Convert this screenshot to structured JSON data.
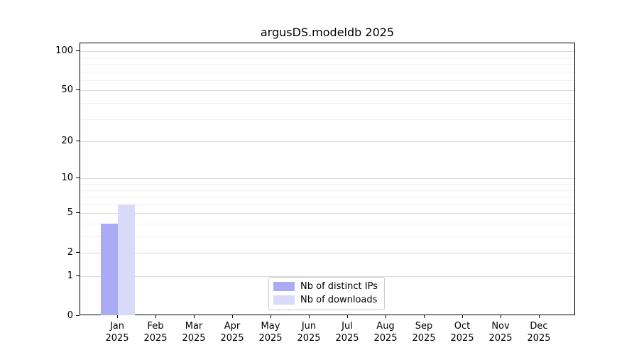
{
  "chart_data": {
    "type": "bar",
    "title": "argusDS.modeldb 2025",
    "categories": [
      "Jan 2025",
      "Feb 2025",
      "Mar 2025",
      "Apr 2025",
      "May 2025",
      "Jun 2025",
      "Jul 2025",
      "Aug 2025",
      "Sep 2025",
      "Oct 2025",
      "Nov 2025",
      "Dec 2025"
    ],
    "series": [
      {
        "name": "Nb of distinct IPs",
        "color": "#aaaaf5",
        "values": [
          4,
          0,
          0,
          0,
          0,
          0,
          0,
          0,
          0,
          0,
          0,
          0
        ]
      },
      {
        "name": "Nb of downloads",
        "color": "#d9d9f9",
        "values": [
          6,
          0,
          0,
          0,
          0,
          0,
          0,
          0,
          0,
          0,
          0,
          0
        ]
      }
    ],
    "yscale": "log1p",
    "ylim": [
      0,
      115
    ],
    "yticks": [
      0,
      1,
      2,
      5,
      10,
      20,
      50,
      100
    ],
    "minor_gridlines": [
      3,
      4,
      6,
      7,
      8,
      9,
      30,
      40,
      60,
      70,
      80,
      90
    ],
    "grid": "horizontal",
    "xlabel": "",
    "ylabel": "",
    "legend_position": "lower center"
  },
  "colors": {
    "major_grid": "#d9d9d9",
    "minor_grid": "#f0f0f0",
    "spine": "#000000",
    "background": "#ffffff"
  }
}
